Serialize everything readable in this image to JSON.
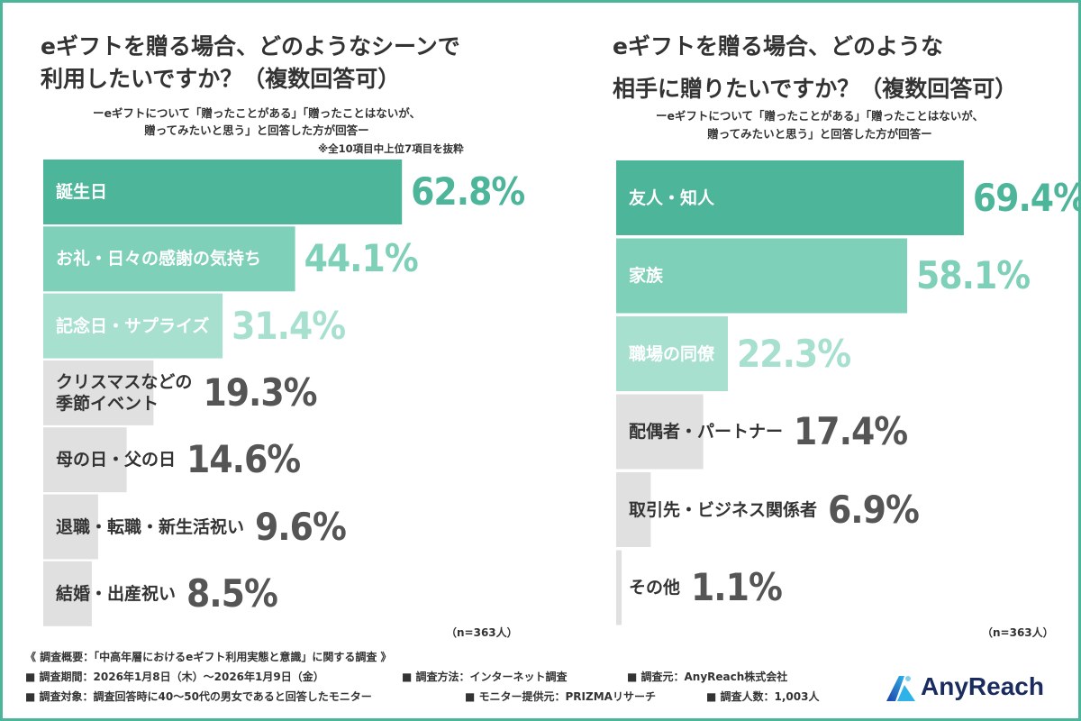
{
  "left": {
    "title_line1": "eギフトを贈る場合、どのようなシーンで",
    "title_line2": "利用したいですか？（複数回答可）",
    "sub_line1": "ーeギフトについて「贈ったことがある」「贈ったことはないが、",
    "sub_line2": "贈ってみたいと思う」と回答した方が回答ー",
    "note": "※全10項目中上位7項目を抜粋",
    "n": "（n=363人）"
  },
  "right": {
    "title_line1": "eギフトを贈る場合、どのような",
    "title_line2": "相手に贈りたいですか？（複数回答可）",
    "sub_line1": "ーeギフトについて「贈ったことがある」「贈ったことはないが、",
    "sub_line2": "贈ってみたいと思う」と回答した方が回答ー",
    "n": "（n=363人）"
  },
  "footer": {
    "line1": "《 調査概要：「中高年層におけるeギフト利用実態と意識」に関する調査 》",
    "period": "■ 調査期間：2026年1月8日（木）～2026年1月9日（金）",
    "method": "■ 調査方法：インターネット調査",
    "source": "■ 調査元：AnyReach株式会社",
    "target": "■ 調査対象：調査回答時に40～50代の男女であると回答したモニター",
    "provider": "■ モニター提供元：PRIZMAリサーチ",
    "count": "■ 調査人数：1,003人"
  },
  "logo": {
    "text": "AnyReach",
    "icon": "anyreach-logo-icon"
  },
  "colors": {
    "accent": "#4db59a",
    "bar_dark": "#4db59a",
    "bar_mid": "#7fd0b8",
    "bar_light": "#a8e0cf",
    "bar_gray": "#e0e0e0",
    "value_dark": "#4db59a",
    "value_mid": "#7fd0b8",
    "value_light": "#a8e0cf",
    "value_gray": "#555555",
    "border": "#4db59a"
  },
  "chart_data": [
    {
      "type": "bar",
      "orientation": "horizontal",
      "title": "eギフトを贈る場合、どのようなシーンで利用したいですか？（複数回答可）",
      "categories": [
        "誕生日",
        "お礼・日々の感謝の気持ち",
        "記念日・サプライズ",
        "クリスマスなどの季節イベント",
        "母の日・父の日",
        "退職・転職・新生活祝い",
        "結婚・出産祝い"
      ],
      "category_lines": [
        [
          "誕生日"
        ],
        [
          "お礼・日々の感謝の気持ち"
        ],
        [
          "記念日・サプライズ"
        ],
        [
          "クリスマスなどの",
          "季節イベント"
        ],
        [
          "母の日・父の日"
        ],
        [
          "退職・転職・新生活祝い"
        ],
        [
          "結婚・出産祝い"
        ]
      ],
      "values": [
        62.8,
        44.1,
        31.4,
        19.3,
        14.6,
        9.6,
        8.5
      ],
      "value_labels": [
        "62.8%",
        "44.1%",
        "31.4%",
        "19.3%",
        "14.6%",
        "9.6%",
        "8.5%"
      ],
      "tiers": [
        "dark",
        "mid",
        "light",
        "gray",
        "gray",
        "gray",
        "gray"
      ],
      "unit": "%",
      "xlim": [
        0,
        100
      ]
    },
    {
      "type": "bar",
      "orientation": "horizontal",
      "title": "eギフトを贈る場合、どのような相手に贈りたいですか？（複数回答可）",
      "categories": [
        "友人・知人",
        "家族",
        "職場の同僚",
        "配偶者・パートナー",
        "取引先・ビジネス関係者",
        "その他"
      ],
      "category_lines": [
        [
          "友人・知人"
        ],
        [
          "家族"
        ],
        [
          "職場の同僚"
        ],
        [
          "配偶者・パートナー"
        ],
        [
          "取引先・ビジネス関係者"
        ],
        [
          "その他"
        ]
      ],
      "values": [
        69.4,
        58.1,
        22.3,
        17.4,
        6.9,
        1.1
      ],
      "value_labels": [
        "69.4%",
        "58.1%",
        "22.3%",
        "17.4%",
        "6.9%",
        "1.1%"
      ],
      "tiers": [
        "dark",
        "mid",
        "light",
        "gray",
        "gray",
        "gray"
      ],
      "unit": "%",
      "xlim": [
        0,
        100
      ]
    }
  ]
}
